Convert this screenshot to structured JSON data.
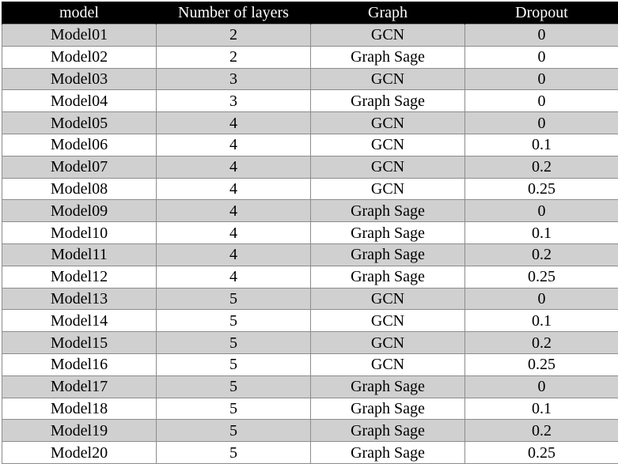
{
  "table": {
    "headers": [
      "model",
      "Number of layers",
      "Graph",
      "Dropout"
    ],
    "rows": [
      [
        "Model01",
        "2",
        "GCN",
        "0"
      ],
      [
        "Model02",
        "2",
        "Graph Sage",
        "0"
      ],
      [
        "Model03",
        "3",
        "GCN",
        "0"
      ],
      [
        "Model04",
        "3",
        "Graph Sage",
        "0"
      ],
      [
        "Model05",
        "4",
        "GCN",
        "0"
      ],
      [
        "Model06",
        "4",
        "GCN",
        "0.1"
      ],
      [
        "Model07",
        "4",
        "GCN",
        "0.2"
      ],
      [
        "Model08",
        "4",
        "GCN",
        "0.25"
      ],
      [
        "Model09",
        "4",
        "Graph Sage",
        "0"
      ],
      [
        "Model10",
        "4",
        "Graph Sage",
        "0.1"
      ],
      [
        "Model11",
        "4",
        "Graph Sage",
        "0.2"
      ],
      [
        "Model12",
        "4",
        "Graph Sage",
        "0.25"
      ],
      [
        "Model13",
        "5",
        "GCN",
        "0"
      ],
      [
        "Model14",
        "5",
        "GCN",
        "0.1"
      ],
      [
        "Model15",
        "5",
        "GCN",
        "0.2"
      ],
      [
        "Model16",
        "5",
        "GCN",
        "0.25"
      ],
      [
        "Model17",
        "5",
        "Graph Sage",
        "0"
      ],
      [
        "Model18",
        "5",
        "Graph Sage",
        "0.1"
      ],
      [
        "Model19",
        "5",
        "Graph Sage",
        "0.2"
      ],
      [
        "Model20",
        "5",
        "Graph Sage",
        "0.25"
      ]
    ]
  },
  "colors": {
    "header_background": "#000000",
    "header_text": "#ffffff",
    "shaded_row": "#d0d0d0",
    "plain_row": "#ffffff",
    "grid_line": "#8c8c8c"
  }
}
